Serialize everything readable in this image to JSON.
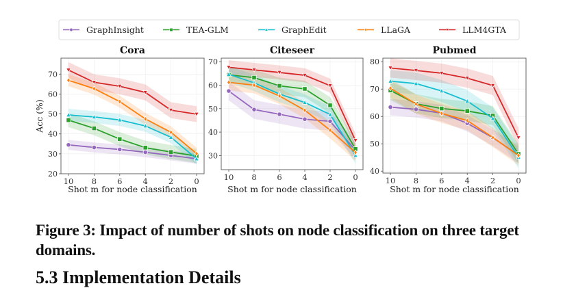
{
  "figure": {
    "caption": "Figure 3: Impact of number of shots on node classification on three target domains.",
    "section_heading": "5.3   Implementation Details"
  },
  "legend": {
    "placement": "top-center",
    "entries": [
      {
        "name": "GraphInsight",
        "color": "#9467bd",
        "marker": "circle"
      },
      {
        "name": "TEA-GLM",
        "color": "#2ca02c",
        "marker": "square"
      },
      {
        "name": "GraphEdit",
        "color": "#17becf",
        "marker": "triangle-up"
      },
      {
        "name": "LLaGA",
        "color": "#ff7f0e",
        "marker": "diamond"
      },
      {
        "name": "LLM4GTA",
        "color": "#d62728",
        "marker": "triangle-down"
      }
    ]
  },
  "chart_data": [
    {
      "type": "line",
      "title": "Cora",
      "xlabel": "Shot m for node classification",
      "ylabel": "Acc (%)",
      "categories": [
        "10",
        "8",
        "6",
        "4",
        "2",
        "0"
      ],
      "yticks": [
        20,
        30,
        40,
        50,
        60,
        70
      ],
      "ylim": [
        20,
        78
      ],
      "grid": true,
      "series": [
        {
          "name": "GraphInsight",
          "values": [
            34.5,
            33.2,
            32.2,
            30.8,
            29.2,
            27.5
          ],
          "band": 2.5
        },
        {
          "name": "TEA-GLM",
          "values": [
            46.9,
            42.8,
            37.4,
            33.1,
            30.9,
            28.9
          ],
          "band": 3.5
        },
        {
          "name": "GraphEdit",
          "values": [
            49.5,
            48.5,
            47.0,
            44.0,
            38.3,
            27.5
          ],
          "band": 3.0
        },
        {
          "name": "LLaGA",
          "values": [
            66.9,
            62.7,
            56.2,
            47.5,
            40.8,
            30.1
          ],
          "band": 3.0
        },
        {
          "name": "LLM4GTA",
          "values": [
            72.0,
            65.9,
            63.9,
            60.8,
            51.9,
            49.9
          ],
          "band": 4.0
        }
      ]
    },
    {
      "type": "line",
      "title": "Citeseer",
      "xlabel": "Shot m for node classification",
      "ylabel": "",
      "categories": [
        "10",
        "8",
        "6",
        "4",
        "2",
        "0"
      ],
      "yticks": [
        30,
        40,
        50,
        60,
        70
      ],
      "ylim": [
        24,
        71.5
      ],
      "grid": true,
      "series": [
        {
          "name": "GraphInsight",
          "values": [
            57.5,
            49.6,
            47.6,
            45.5,
            44.6,
            32.3
          ],
          "band": 4.0
        },
        {
          "name": "TEA-GLM",
          "values": [
            64.4,
            63.2,
            59.7,
            58.4,
            51.4,
            32.8
          ],
          "band": 3.5
        },
        {
          "name": "GraphEdit",
          "values": [
            64.6,
            61.0,
            56.2,
            52.6,
            47.5,
            30.1
          ],
          "band": 3.5
        },
        {
          "name": "LLaGA",
          "values": [
            61.2,
            60.0,
            55.4,
            49.3,
            40.8,
            31.3
          ],
          "band": 3.5
        },
        {
          "name": "LLM4GTA",
          "values": [
            67.6,
            66.5,
            65.4,
            64.2,
            59.8,
            36.4
          ],
          "band": 3.0
        }
      ]
    },
    {
      "type": "line",
      "title": "Pubmed",
      "xlabel": "Shot m for node classification",
      "ylabel": "",
      "categories": [
        "10",
        "8",
        "6",
        "4",
        "2",
        "0"
      ],
      "yticks": [
        40,
        50,
        60,
        70,
        80
      ],
      "ylim": [
        39.3,
        81.3
      ],
      "grid": true,
      "series": [
        {
          "name": "GraphInsight",
          "values": [
            63.4,
            62.6,
            61.2,
            57.5,
            52.2,
            45.9
          ],
          "band": 3.0
        },
        {
          "name": "TEA-GLM",
          "values": [
            69.5,
            64.6,
            62.9,
            62.0,
            60.3,
            46.3
          ],
          "band": 3.5
        },
        {
          "name": "GraphEdit",
          "values": [
            72.9,
            72.0,
            69.3,
            65.6,
            59.3,
            45.1
          ],
          "band": 4.0
        },
        {
          "name": "LLaGA",
          "values": [
            70.3,
            64.5,
            61.1,
            58.5,
            52.3,
            45.7
          ],
          "band": 3.5
        },
        {
          "name": "LLM4GTA",
          "values": [
            77.7,
            76.8,
            75.8,
            74.0,
            71.3,
            52.2
          ],
          "band": 3.5
        }
      ]
    }
  ]
}
